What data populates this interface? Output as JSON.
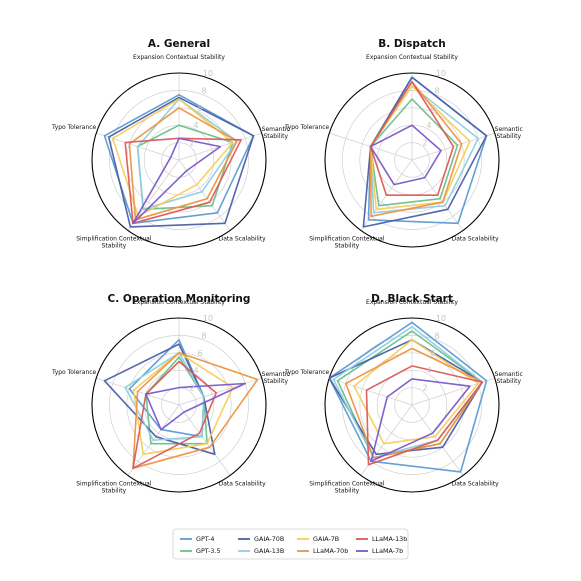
{
  "legend": {
    "entries": [
      {
        "label": "GPT-4",
        "color": "#5b9bd5"
      },
      {
        "label": "GPT-3.5",
        "color": "#6cc08b"
      },
      {
        "label": "GAIA-70B",
        "color": "#4a5fa8"
      },
      {
        "label": "GAIA-13B",
        "color": "#8ecfe0"
      },
      {
        "label": "GAIA-7B",
        "color": "#f5cd5a"
      },
      {
        "label": "LLaMA-70b",
        "color": "#ec9442"
      },
      {
        "label": "LLaMA-13b",
        "color": "#dc5a5a"
      },
      {
        "label": "LLaMA-7b",
        "color": "#7a5ac8"
      }
    ]
  },
  "chart_data": [
    {
      "type": "radar",
      "title": "A. General",
      "axes": [
        "Expansion Contextual Stability",
        "Semantic\nStability",
        "Data Scalability",
        "Simplification Contextual\nStability",
        "Typo Tolerance"
      ],
      "rlim": [
        0,
        10
      ],
      "rticks": [
        2,
        4,
        6,
        8,
        10
      ],
      "grid": true,
      "series": [
        {
          "name": "GPT-4",
          "values": [
            7.5,
            9,
            7.5,
            9,
            9
          ]
        },
        {
          "name": "GPT-3.5",
          "values": [
            4,
            6.5,
            6.5,
            7,
            5
          ]
        },
        {
          "name": "GAIA-70B",
          "values": [
            7.2,
            9,
            9,
            9.5,
            8.5
          ]
        },
        {
          "name": "GAIA-13B",
          "values": [
            7,
            7,
            4.5,
            7,
            5
          ]
        },
        {
          "name": "GAIA-7B",
          "values": [
            7,
            6.5,
            3.5,
            8,
            8
          ]
        },
        {
          "name": "LLaMA-70b",
          "values": [
            6,
            7,
            5.5,
            8.5,
            6
          ]
        },
        {
          "name": "LLaMA-13b",
          "values": [
            2.5,
            7.5,
            6,
            9,
            6.5
          ]
        },
        {
          "name": "LLaMA-7b",
          "values": [
            2.5,
            5,
            1.5,
            9,
            1
          ]
        }
      ]
    },
    {
      "type": "radar",
      "title": "B. Dispatch",
      "axes": [
        "Expansion Contextual Stability",
        "Semantic\nStability",
        "Data Scalability",
        "Simplification Contextual\nStability",
        "Typo Tolerance"
      ],
      "rlim": [
        0,
        10
      ],
      "rticks": [
        2,
        4,
        6,
        8,
        10
      ],
      "grid": true,
      "series": [
        {
          "name": "GPT-4",
          "values": [
            9.5,
            9,
            9,
            8.5,
            5
          ]
        },
        {
          "name": "GPT-3.5",
          "values": [
            7,
            5.5,
            5.5,
            6.5,
            5
          ]
        },
        {
          "name": "GAIA-70B",
          "values": [
            9.5,
            9,
            7,
            9.5,
            5
          ]
        },
        {
          "name": "GAIA-13B",
          "values": [
            8.5,
            8,
            6.5,
            7.5,
            5
          ]
        },
        {
          "name": "GAIA-7B",
          "values": [
            8.5,
            7,
            6,
            7,
            5
          ]
        },
        {
          "name": "LLaMA-70b",
          "values": [
            9,
            6,
            6,
            8,
            5
          ]
        },
        {
          "name": "LLaMA-13b",
          "values": [
            9,
            5,
            5,
            5,
            5
          ]
        },
        {
          "name": "LLaMA-7b",
          "values": [
            4,
            3.5,
            2.5,
            3.5,
            5
          ]
        }
      ]
    },
    {
      "type": "radar",
      "title": "C. Operation Monitoring",
      "axes": [
        "Expansion Contextual Stability",
        "Semantic\nStability",
        "Data Scalability",
        "Simplification Contextual\nStability",
        "Typo Tolerance"
      ],
      "rlim": [
        0,
        10
      ],
      "rticks": [
        2,
        4,
        6,
        8,
        10
      ],
      "grid": true,
      "series": [
        {
          "name": "GPT-4",
          "values": [
            7.5,
            3,
            4.5,
            3.5,
            6
          ]
        },
        {
          "name": "GPT-3.5",
          "values": [
            5.5,
            3,
            5.5,
            5.5,
            4
          ]
        },
        {
          "name": "GAIA-70B",
          "values": [
            7,
            3,
            7,
            4.5,
            9
          ]
        },
        {
          "name": "GAIA-13B",
          "values": [
            6,
            3,
            4.5,
            5,
            6.5
          ]
        },
        {
          "name": "GAIA-7B",
          "values": [
            6,
            6.5,
            5.5,
            7,
            5.5
          ]
        },
        {
          "name": "LLaMA-70b",
          "values": [
            6,
            9.5,
            6,
            9,
            5
          ]
        },
        {
          "name": "LLaMA-13b",
          "values": [
            5,
            4.5,
            4,
            9,
            4
          ]
        },
        {
          "name": "LLaMA-7b",
          "values": [
            2,
            8,
            1,
            3.5,
            4
          ]
        }
      ]
    },
    {
      "type": "radar",
      "title": "D. Black Start",
      "axes": [
        "Expansion Contextual Stability",
        "Semantic\nStability",
        "Data Scalability",
        "Simplification Contextual\nStability",
        "Typo Tolerance"
      ],
      "rlim": [
        0,
        10
      ],
      "rticks": [
        2,
        4,
        6,
        8,
        10
      ],
      "grid": true,
      "series": [
        {
          "name": "GPT-4",
          "values": [
            9.5,
            9,
            9.5,
            8,
            10
          ]
        },
        {
          "name": "GPT-3.5",
          "values": [
            8.5,
            8.5,
            5.5,
            7.5,
            9
          ]
        },
        {
          "name": "GAIA-70B",
          "values": [
            7.5,
            8.5,
            6,
            7,
            10
          ]
        },
        {
          "name": "GAIA-13B",
          "values": [
            9,
            8.5,
            5,
            7.5,
            9.5
          ]
        },
        {
          "name": "GAIA-7B",
          "values": [
            7.5,
            8,
            4.5,
            5.5,
            7
          ]
        },
        {
          "name": "LLaMA-70b",
          "values": [
            6.5,
            8.5,
            5.5,
            7.5,
            8
          ]
        },
        {
          "name": "LLaMA-13b",
          "values": [
            4.5,
            8.5,
            5,
            8.5,
            5.5
          ]
        },
        {
          "name": "LLaMA-7b",
          "values": [
            3,
            7,
            4,
            8,
            3
          ]
        }
      ]
    }
  ]
}
